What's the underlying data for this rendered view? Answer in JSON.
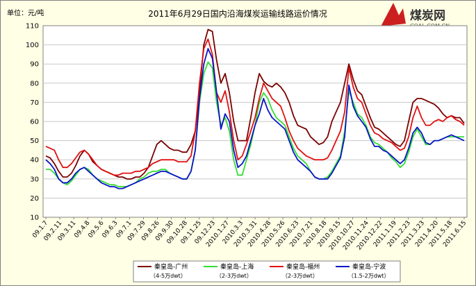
{
  "chart_data": {
    "type": "line",
    "title": "2011年6月29日国内沿海煤炭运输线路运价情况",
    "unit_label": "单位：元/吨",
    "ylim": [
      10,
      110
    ],
    "yticks": [
      10,
      20,
      30,
      40,
      50,
      60,
      70,
      80,
      90,
      100,
      110
    ],
    "grid": true,
    "legend_position": "bottom",
    "x_tick_labels": [
      "09.1.7",
      "09.2.11",
      "09.3.11",
      "09.4.8",
      "09.5.6",
      "09.6.3",
      "09.7.1",
      "09.7.29",
      "09.8.26",
      "09.9.30",
      "09.10.28",
      "09.11.25",
      "09.12.23",
      "2010.1.27",
      "2010.3.3",
      "2010.3.31",
      "2010.4.28",
      "2010.5.26",
      "2010.6.23",
      "2010.7.21",
      "2010.8.18",
      "2010.9.15",
      "2010.10.27",
      "2010.11.24",
      "2010.12.22",
      "2011.1.19",
      "2011.2.23",
      "2011.3.23",
      "2011.4.20",
      "2011.5.18",
      "2011.6.15"
    ],
    "series": [
      {
        "name": "秦皇岛-广州",
        "subtitle": "（4-5万dwt）",
        "color": "#7a0000",
        "values": [
          42,
          41,
          38,
          34,
          31,
          31,
          33,
          37,
          42,
          45,
          43,
          39,
          37,
          35,
          34,
          33,
          32,
          31,
          31,
          30,
          30,
          31,
          31,
          33,
          36,
          42,
          48,
          50,
          48,
          46,
          45,
          45,
          44,
          44,
          48,
          55,
          75,
          100,
          108,
          107,
          92,
          80,
          85,
          75,
          60,
          50,
          50,
          50,
          62,
          75,
          85,
          81,
          79,
          78,
          80,
          78,
          75,
          70,
          63,
          58,
          57,
          56,
          52,
          50,
          48,
          49,
          52,
          60,
          65,
          70,
          80,
          90,
          82,
          76,
          74,
          68,
          62,
          57,
          56,
          54,
          52,
          50,
          48,
          47,
          50,
          60,
          70,
          72,
          72,
          71,
          70,
          69,
          67,
          64,
          62,
          63,
          62,
          62,
          59
        ]
      },
      {
        "name": "秦皇岛-上海",
        "subtitle": "（2-3万dwt）",
        "color": "#33dd33",
        "values": [
          35,
          35,
          33,
          30,
          28,
          27,
          29,
          32,
          35,
          36,
          35,
          32,
          30,
          29,
          28,
          27,
          27,
          26,
          26,
          26,
          27,
          28,
          30,
          31,
          33,
          34,
          34,
          35,
          35,
          33,
          32,
          31,
          30,
          30,
          34,
          45,
          70,
          85,
          91,
          88,
          70,
          58,
          62,
          55,
          40,
          32,
          32,
          40,
          48,
          58,
          70,
          75,
          72,
          66,
          62,
          60,
          58,
          52,
          46,
          42,
          40,
          38,
          34,
          31,
          30,
          30,
          31,
          34,
          38,
          42,
          55,
          76,
          70,
          64,
          62,
          58,
          52,
          49,
          48,
          46,
          44,
          41,
          39,
          36,
          38,
          44,
          52,
          56,
          52,
          48,
          48,
          50,
          50,
          51,
          52,
          52,
          52,
          52,
          52
        ]
      },
      {
        "name": "秦皇岛-福州",
        "subtitle": "（2-3万dwt）",
        "color": "#e01010",
        "values": [
          47,
          46,
          45,
          40,
          36,
          36,
          38,
          41,
          44,
          45,
          43,
          40,
          37,
          35,
          34,
          33,
          32,
          32,
          33,
          33,
          33,
          34,
          34,
          35,
          36,
          38,
          39,
          40,
          40,
          40,
          40,
          39,
          39,
          39,
          42,
          55,
          80,
          98,
          103,
          95,
          75,
          70,
          76,
          65,
          50,
          40,
          42,
          48,
          55,
          62,
          72,
          80,
          76,
          72,
          70,
          68,
          62,
          55,
          50,
          46,
          44,
          42,
          41,
          40,
          40,
          40,
          41,
          45,
          50,
          55,
          65,
          88,
          78,
          72,
          70,
          64,
          58,
          54,
          53,
          51,
          50,
          49,
          47,
          45,
          46,
          52,
          62,
          68,
          62,
          58,
          58,
          60,
          61,
          60,
          62,
          63,
          61,
          60,
          58
        ]
      },
      {
        "name": "秦皇岛-宁波",
        "subtitle": "（1.5-2万dwt）",
        "color": "#0a14c8",
        "values": [
          40,
          38,
          35,
          30,
          28,
          28,
          30,
          33,
          35,
          36,
          34,
          32,
          30,
          28,
          27,
          26,
          26,
          25,
          25,
          26,
          27,
          28,
          29,
          30,
          31,
          32,
          33,
          34,
          34,
          33,
          32,
          31,
          30,
          30,
          34,
          45,
          72,
          90,
          98,
          93,
          75,
          56,
          64,
          60,
          45,
          36,
          38,
          42,
          50,
          58,
          64,
          72,
          66,
          62,
          60,
          58,
          56,
          50,
          44,
          40,
          38,
          36,
          34,
          31,
          30,
          30,
          30,
          33,
          37,
          41,
          52,
          79,
          68,
          63,
          60,
          57,
          51,
          47,
          47,
          45,
          44,
          42,
          40,
          38,
          40,
          46,
          54,
          57,
          54,
          49,
          48,
          50,
          50,
          51,
          52,
          53,
          52,
          51,
          50
        ]
      }
    ]
  },
  "logo": {
    "brand": "煤炭网",
    "site": "COAL.COM.CN"
  }
}
